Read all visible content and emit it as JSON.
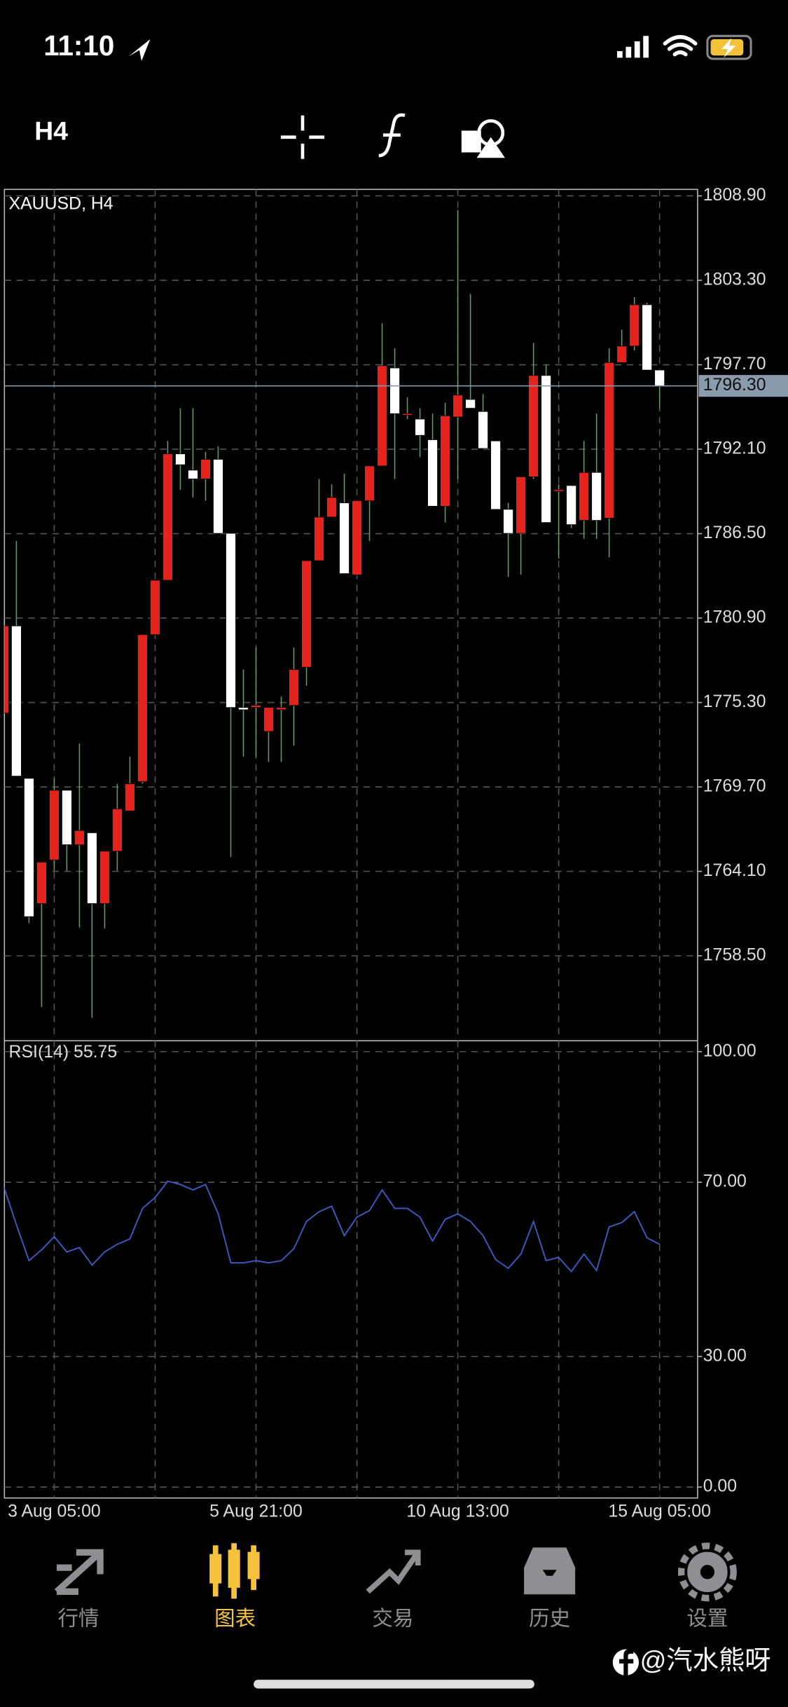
{
  "status_bar": {
    "time": "11:10"
  },
  "toolbar": {
    "timeframe": "H4"
  },
  "chart_data": [
    {
      "type": "candlestick",
      "title": "XAUUSD, H4",
      "categories": [
        null,
        null,
        null,
        null,
        "3 Aug 05:00",
        null,
        null,
        null,
        null,
        null,
        null,
        null,
        null,
        null,
        null,
        null,
        null,
        null,
        null,
        null,
        "5 Aug 21:00",
        null,
        null,
        null,
        null,
        null,
        null,
        null,
        null,
        null,
        null,
        null,
        null,
        null,
        null,
        null,
        "10 Aug 13:00",
        null,
        null,
        null,
        null,
        null,
        null,
        null,
        null,
        null,
        null,
        null,
        null,
        null,
        null,
        null,
        "15 Aug 05:00"
      ],
      "open": [
        1774.6,
        1780.38,
        1770.27,
        1761.97,
        1764.86,
        1769.48,
        1765.87,
        1766.66,
        1761.97,
        1765.44,
        1768.11,
        1770.06,
        1779.8,
        1783.41,
        1791.79,
        1790.71,
        1790.13,
        1791.43,
        1786.52,
        1774.97,
        1774.97,
        1773.38,
        1774.82,
        1775.11,
        1777.64,
        1784.71,
        1787.6,
        1788.54,
        1783.77,
        1788.68,
        1790.99,
        1797.49,
        1794.46,
        1794.1,
        1792.73,
        1788.32,
        1794.24,
        1795.4,
        1794.6,
        1792.65,
        1788.11,
        1786.52,
        1790.27,
        1796.99,
        1789.41,
        1789.69,
        1787.38,
        1790.56,
        1787.53,
        1797.85,
        1798.94,
        1801.68,
        1797.35
      ],
      "high": [
        1780.38,
        1786.01,
        1770.27,
        1764.71,
        1770.27,
        1769.48,
        1772.58,
        1766.66,
        1765.44,
        1769.91,
        1771.72,
        1779.8,
        1783.41,
        1792.65,
        1794.82,
        1794.82,
        1791.93,
        1792.29,
        1786.52,
        1777.49,
        1778.94,
        1774.97,
        1775.69,
        1778.94,
        1784.71,
        1790.13,
        1789.77,
        1790.49,
        1788.68,
        1790.99,
        1800.45,
        1798.79,
        1795.54,
        1794.82,
        1794.46,
        1795.18,
        1807.96,
        1802.4,
        1795.76,
        1792.65,
        1788.54,
        1790.27,
        1799.15,
        1797.71,
        1789.77,
        1789.69,
        1792.65,
        1794.46,
        1798.79,
        1800.02,
        1802.19,
        1801.82,
        1797.35
      ],
      "low": [
        1774.6,
        1770.42,
        1760.67,
        1755.11,
        1764.14,
        1764.14,
        1760.38,
        1754.39,
        1760.31,
        1764.14,
        1768.11,
        1769.91,
        1779.8,
        1783.41,
        1789.41,
        1788.9,
        1788.68,
        1786.52,
        1765.07,
        1771.72,
        1771.72,
        1771.36,
        1771.36,
        1772.44,
        1776.41,
        1784.71,
        1787.6,
        1783.85,
        1783.77,
        1786.01,
        1790.99,
        1790.13,
        1794.1,
        1791.57,
        1788.32,
        1787.24,
        1790.13,
        1794.82,
        1792.15,
        1788.11,
        1783.63,
        1783.77,
        1790.13,
        1787.24,
        1784.86,
        1786.88,
        1786.16,
        1786.16,
        1784.93,
        1797.85,
        1798.65,
        1797.35,
        1794.82
      ],
      "close": [
        1780.38,
        1770.42,
        1761.1,
        1764.71,
        1769.48,
        1765.87,
        1766.81,
        1761.97,
        1765.44,
        1768.25,
        1769.91,
        1779.8,
        1783.41,
        1791.79,
        1791.07,
        1790.13,
        1791.43,
        1786.52,
        1774.97,
        1774.82,
        1775.11,
        1774.97,
        1774.97,
        1777.49,
        1784.71,
        1787.6,
        1788.9,
        1783.85,
        1788.68,
        1790.99,
        1797.64,
        1794.46,
        1794.46,
        1793.02,
        1788.32,
        1794.32,
        1795.69,
        1794.82,
        1792.15,
        1788.11,
        1786.52,
        1790.27,
        1796.99,
        1787.24,
        1789.41,
        1787.1,
        1790.56,
        1787.38,
        1797.85,
        1798.94,
        1801.68,
        1797.35,
        1796.26
      ],
      "up_color": "#e3231c",
      "down_color": "#ffffff",
      "wick_color": "#5f9f5f",
      "ylim": [
        1752.94,
        1809.33
      ],
      "yticks": [
        {
          "value": 1808.9,
          "label": "1808.90"
        },
        {
          "value": 1803.3,
          "label": "1803.30"
        },
        {
          "value": 1797.7,
          "label": "1797.70"
        },
        {
          "value": 1792.1,
          "label": "1792.10"
        },
        {
          "value": 1786.5,
          "label": "1786.50"
        },
        {
          "value": 1780.9,
          "label": "1780.90"
        },
        {
          "value": 1775.3,
          "label": "1775.30"
        },
        {
          "value": 1769.7,
          "label": "1769.70"
        },
        {
          "value": 1764.1,
          "label": "1764.10"
        },
        {
          "value": 1758.5,
          "label": "1758.50"
        }
      ],
      "current_price": {
        "value": 1796.3,
        "label": "1796.30"
      },
      "grid": true
    },
    {
      "type": "line",
      "title": "RSI(14) 55.75",
      "color": "#3c5cc4",
      "values": [
        69,
        60.25,
        52,
        54.5,
        57.5,
        54,
        55,
        51,
        54,
        55.75,
        57,
        64,
        66.5,
        70.25,
        69.5,
        68.25,
        69.5,
        62.75,
        51.5,
        51.5,
        52,
        51.5,
        52,
        54.75,
        61,
        63.25,
        64.5,
        57.75,
        62,
        63.5,
        68.25,
        64,
        64,
        62,
        56.5,
        61.5,
        62.75,
        61,
        57.75,
        52.25,
        50.25,
        53.5,
        61,
        52,
        52.75,
        49.5,
        53.5,
        49.75,
        59.75,
        60.75,
        63.25,
        57.25,
        55.75
      ],
      "ylim": [
        -2.5,
        102.5
      ],
      "yticks": [
        {
          "value": 100,
          "label": "100.00"
        },
        {
          "value": 70,
          "label": "70.00"
        },
        {
          "value": 30,
          "label": "30.00"
        },
        {
          "value": 0,
          "label": "0.00"
        }
      ],
      "grid": true
    }
  ],
  "tab_bar": {
    "tabs": [
      "行情",
      "图表",
      "交易",
      "历史",
      "设置"
    ],
    "active": 1
  },
  "watermark": "@汽水熊呀"
}
